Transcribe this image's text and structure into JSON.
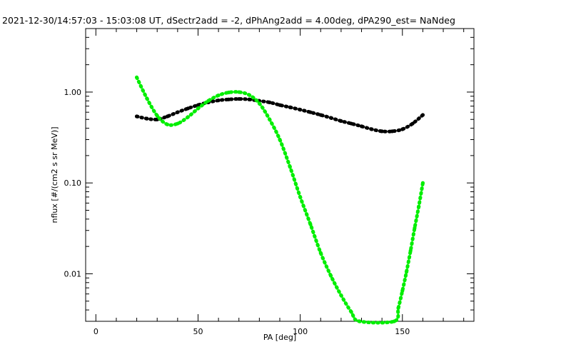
{
  "chart_data": {
    "type": "scatter",
    "title": "2021-12-30/14:57:03 - 15:03:08 UT, dSectr2add = -2, dPhAng2add = 4.00deg, dPA290_est=   NaNdeg",
    "xlabel": "PA [deg]",
    "ylabel": "nflux [#/(cm2 s sr MeV)]",
    "xlim": [
      -5,
      185
    ],
    "ylim": [
      0.003,
      5.0
    ],
    "yscale": "log",
    "x_ticks": [
      0,
      50,
      100,
      150
    ],
    "x_tick_labels": [
      "0",
      "50",
      "100",
      "150"
    ],
    "y_ticks": [
      0.01,
      0.1,
      1.0
    ],
    "y_tick_labels": [
      "0.01",
      "0.10",
      "1.00"
    ],
    "grid": false,
    "series": [
      {
        "color": "#000000",
        "x": [
          20,
          25,
          30,
          35,
          40,
          45,
          50,
          55,
          60,
          65,
          70,
          75,
          80,
          85,
          90,
          95,
          100,
          105,
          110,
          115,
          120,
          125,
          130,
          135,
          140,
          145,
          150,
          155,
          160
        ],
        "y": [
          0.54,
          0.51,
          0.5,
          0.54,
          0.6,
          0.66,
          0.72,
          0.77,
          0.81,
          0.83,
          0.84,
          0.83,
          0.8,
          0.77,
          0.72,
          0.68,
          0.64,
          0.6,
          0.56,
          0.52,
          0.48,
          0.45,
          0.42,
          0.39,
          0.37,
          0.37,
          0.39,
          0.45,
          0.56
        ]
      },
      {
        "color": "#00ee00",
        "x": [
          20,
          25,
          30,
          35,
          40,
          45,
          50,
          55,
          60,
          65,
          70,
          75,
          80,
          85,
          90,
          95,
          100,
          105,
          110,
          115,
          120,
          125,
          129,
          146,
          148,
          150,
          152,
          154,
          156,
          158,
          160
        ],
        "y": [
          1.45,
          0.85,
          0.55,
          0.44,
          0.45,
          0.53,
          0.66,
          0.8,
          0.92,
          0.99,
          1.0,
          0.93,
          0.75,
          0.5,
          0.3,
          0.15,
          0.07,
          0.035,
          0.017,
          0.0095,
          0.0058,
          0.0038,
          0.003,
          0.003,
          0.0042,
          0.0065,
          0.0105,
          0.018,
          0.032,
          0.055,
          0.1
        ]
      }
    ]
  }
}
